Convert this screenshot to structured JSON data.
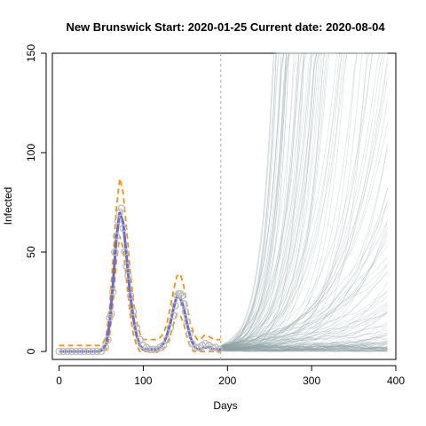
{
  "chart_data": {
    "type": "line",
    "title_parts": {
      "region": "New Brunswick",
      "start_label": "Start:",
      "start_date": "2020-01-25",
      "current_label": "Current date:",
      "current_date": "2020-08-04"
    },
    "xlabel": "Days",
    "ylabel": "Infected",
    "xlim": [
      -8,
      400
    ],
    "ylim": [
      -4,
      150
    ],
    "x_ticks": [
      0,
      100,
      200,
      300,
      400
    ],
    "y_ticks": [
      0,
      50,
      100,
      150
    ],
    "current_day": 192,
    "grid": false,
    "legend": "none",
    "colors": {
      "observed": "#b9a7c9",
      "fit": "#6b6bd6",
      "bounds": "#f0960a",
      "simulations": "#8fa3a6",
      "marker": "#bdbdbd"
    },
    "observed_points": [
      [
        0,
        0
      ],
      [
        5,
        0
      ],
      [
        10,
        0
      ],
      [
        15,
        0
      ],
      [
        20,
        0
      ],
      [
        25,
        0
      ],
      [
        30,
        0
      ],
      [
        35,
        0
      ],
      [
        40,
        0
      ],
      [
        45,
        0
      ],
      [
        50,
        0
      ],
      [
        55,
        2
      ],
      [
        58,
        6
      ],
      [
        60,
        17
      ],
      [
        62,
        19
      ],
      [
        64,
        30
      ],
      [
        66,
        50
      ],
      [
        68,
        58
      ],
      [
        70,
        66
      ],
      [
        72,
        70
      ],
      [
        74,
        72
      ],
      [
        76,
        62
      ],
      [
        78,
        50
      ],
      [
        80,
        43
      ],
      [
        82,
        38
      ],
      [
        85,
        28
      ],
      [
        88,
        20
      ],
      [
        92,
        12
      ],
      [
        96,
        6
      ],
      [
        100,
        3
      ],
      [
        104,
        2
      ],
      [
        108,
        1
      ],
      [
        112,
        1
      ],
      [
        116,
        1
      ],
      [
        120,
        2
      ],
      [
        124,
        3
      ],
      [
        128,
        6
      ],
      [
        132,
        12
      ],
      [
        136,
        18
      ],
      [
        138,
        23
      ],
      [
        140,
        28
      ],
      [
        142,
        29
      ],
      [
        144,
        29
      ],
      [
        146,
        28
      ],
      [
        148,
        24
      ],
      [
        150,
        20
      ],
      [
        152,
        15
      ],
      [
        155,
        9
      ],
      [
        158,
        4
      ],
      [
        162,
        2
      ],
      [
        166,
        2
      ],
      [
        170,
        3
      ],
      [
        174,
        4
      ],
      [
        178,
        3
      ],
      [
        182,
        2
      ],
      [
        186,
        2
      ],
      [
        190,
        1
      ]
    ],
    "fit_line": {
      "x": [
        0,
        40,
        48,
        52,
        56,
        60,
        64,
        68,
        72,
        76,
        80,
        84,
        88,
        92,
        96,
        100,
        104,
        108,
        112,
        116,
        120,
        124,
        128,
        132,
        136,
        140,
        144,
        148,
        152,
        156,
        160,
        164,
        168,
        172,
        176,
        180,
        184,
        188,
        192
      ],
      "y": [
        0,
        0,
        0,
        1,
        4,
        14,
        34,
        57,
        70,
        65,
        48,
        30,
        17,
        8,
        3,
        1,
        1,
        1,
        1,
        1,
        2,
        4,
        8,
        14,
        22,
        28,
        27,
        22,
        14,
        7,
        3,
        1,
        1,
        2,
        2,
        2,
        1,
        1,
        1
      ]
    },
    "upper_bound": {
      "x": [
        0,
        40,
        48,
        52,
        56,
        60,
        64,
        68,
        72,
        76,
        80,
        84,
        88,
        92,
        96,
        100,
        104,
        108,
        112,
        116,
        120,
        124,
        128,
        132,
        136,
        140,
        144,
        148,
        152,
        156,
        160,
        164,
        168,
        172,
        176,
        180,
        184,
        188,
        192
      ],
      "y": [
        3,
        3,
        3,
        4,
        8,
        22,
        46,
        72,
        87,
        80,
        62,
        42,
        26,
        15,
        9,
        6,
        6,
        6,
        6,
        6,
        7,
        9,
        14,
        22,
        31,
        38,
        39,
        33,
        23,
        14,
        9,
        6,
        6,
        8,
        8,
        7,
        6,
        6,
        6
      ]
    },
    "lower_bound": {
      "x": [
        0,
        40,
        48,
        52,
        56,
        60,
        64,
        68,
        72,
        76,
        80,
        84,
        88,
        92,
        96,
        100,
        104,
        108,
        112,
        116,
        120,
        124,
        128,
        132,
        136,
        140,
        144,
        148,
        152,
        156,
        160,
        164,
        168,
        172,
        176,
        180,
        184,
        188,
        192
      ],
      "y": [
        0,
        0,
        0,
        0,
        1,
        8,
        24,
        45,
        58,
        52,
        36,
        20,
        9,
        3,
        0,
        0,
        0,
        0,
        0,
        0,
        0,
        1,
        4,
        8,
        14,
        19,
        18,
        14,
        7,
        2,
        0,
        0,
        0,
        0,
        0,
        0,
        0,
        0,
        0
      ]
    },
    "simulations": {
      "start_day": 192,
      "end_day": 390,
      "count": 160,
      "description_values_range": [
        0,
        150
      ]
    }
  }
}
